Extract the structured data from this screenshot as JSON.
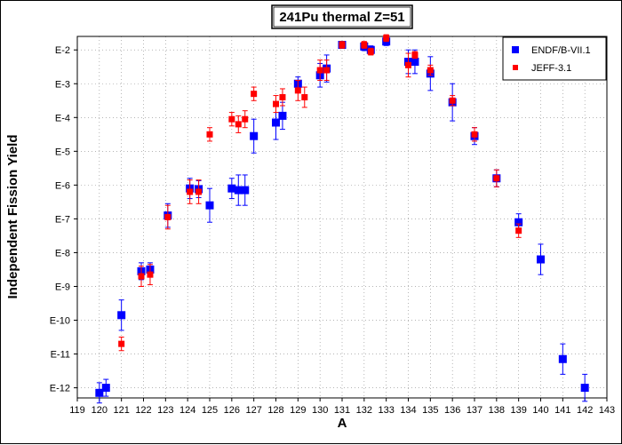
{
  "chart_data": {
    "type": "scatter",
    "title": "241Pu thermal Z=51",
    "xlabel": "A",
    "ylabel": "Independent Fission Yield",
    "xlim": [
      119,
      143
    ],
    "ylim_exp": [
      -12.3,
      -1.6
    ],
    "y_scale": "log",
    "grid": true,
    "legend_position": "top-right",
    "x_ticks": [
      "119",
      "120",
      "121",
      "122",
      "123",
      "124",
      "125",
      "126",
      "127",
      "128",
      "129",
      "130",
      "131",
      "132",
      "133",
      "134",
      "135",
      "136",
      "137",
      "138",
      "139",
      "140",
      "141",
      "142",
      "143"
    ],
    "y_ticks": [
      "E-2",
      "E-3",
      "E-4",
      "E-5",
      "E-6",
      "E-7",
      "E-8",
      "E-9",
      "E-10",
      "E-11",
      "E-12"
    ],
    "series": [
      {
        "name": "ENDF/B-VII.1",
        "color": "#0000ff",
        "marker": "square",
        "points": [
          {
            "x": 120.0,
            "y": -12.15,
            "err": 0.3
          },
          {
            "x": 120.3,
            "y": -12.0,
            "err": 0.25
          },
          {
            "x": 121.0,
            "y": -9.85,
            "err": 0.45
          },
          {
            "x": 121.9,
            "y": -8.55,
            "err": 0.25
          },
          {
            "x": 122.3,
            "y": -8.5,
            "err": 0.2
          },
          {
            "x": 123.1,
            "y": -6.9,
            "err": 0.35
          },
          {
            "x": 124.1,
            "y": -6.1,
            "err": 0.3
          },
          {
            "x": 124.5,
            "y": -6.12,
            "err": 0.25
          },
          {
            "x": 125.0,
            "y": -6.6,
            "err": 0.5
          },
          {
            "x": 126.0,
            "y": -6.1,
            "err": 0.3
          },
          {
            "x": 126.3,
            "y": -6.15,
            "err": 0.45
          },
          {
            "x": 126.6,
            "y": -6.15,
            "err": 0.45
          },
          {
            "x": 127.0,
            "y": -4.55,
            "err": 0.5
          },
          {
            "x": 128.0,
            "y": -4.15,
            "err": 0.5
          },
          {
            "x": 128.3,
            "y": -3.95,
            "err": 0.4
          },
          {
            "x": 129.0,
            "y": -3.0,
            "err": 0.2
          },
          {
            "x": 130.0,
            "y": -2.75,
            "err": 0.35
          },
          {
            "x": 130.3,
            "y": -2.55,
            "err": 0.4
          },
          {
            "x": 131.0,
            "y": -1.85,
            "err": 0.1
          },
          {
            "x": 132.0,
            "y": -1.9,
            "err": 0.12
          },
          {
            "x": 132.3,
            "y": -2.0,
            "err": 0.12
          },
          {
            "x": 133.0,
            "y": -1.75,
            "err": 0.12
          },
          {
            "x": 134.0,
            "y": -2.35,
            "err": 0.35
          },
          {
            "x": 134.3,
            "y": -2.35,
            "err": 0.35
          },
          {
            "x": 135.0,
            "y": -2.7,
            "err": 0.5
          },
          {
            "x": 136.0,
            "y": -3.55,
            "err": 0.55
          },
          {
            "x": 137.0,
            "y": -4.55,
            "err": 0.25
          },
          {
            "x": 138.0,
            "y": -5.8,
            "err": 0.25
          },
          {
            "x": 139.0,
            "y": -7.1,
            "err": 0.25
          },
          {
            "x": 140.0,
            "y": -8.2,
            "err": 0.45
          },
          {
            "x": 141.0,
            "y": -11.15,
            "err": 0.45
          },
          {
            "x": 142.0,
            "y": -12.0,
            "err": 0.4
          }
        ]
      },
      {
        "name": "JEFF-3.1",
        "color": "#ff0000",
        "marker": "square",
        "points": [
          {
            "x": 121.0,
            "y": -10.7,
            "err": 0.2
          },
          {
            "x": 121.9,
            "y": -8.7,
            "err": 0.3
          },
          {
            "x": 122.3,
            "y": -8.65,
            "err": 0.3
          },
          {
            "x": 123.1,
            "y": -6.95,
            "err": 0.35
          },
          {
            "x": 124.1,
            "y": -6.2,
            "err": 0.35
          },
          {
            "x": 124.5,
            "y": -6.2,
            "err": 0.35
          },
          {
            "x": 125.0,
            "y": -4.5,
            "err": 0.2
          },
          {
            "x": 126.0,
            "y": -4.05,
            "err": 0.2
          },
          {
            "x": 126.3,
            "y": -4.2,
            "err": 0.25
          },
          {
            "x": 126.6,
            "y": -4.05,
            "err": 0.25
          },
          {
            "x": 127.0,
            "y": -3.3,
            "err": 0.2
          },
          {
            "x": 128.0,
            "y": -3.6,
            "err": 0.25
          },
          {
            "x": 128.3,
            "y": -3.4,
            "err": 0.25
          },
          {
            "x": 129.0,
            "y": -3.2,
            "err": 0.3
          },
          {
            "x": 129.3,
            "y": -3.4,
            "err": 0.3
          },
          {
            "x": 130.0,
            "y": -2.6,
            "err": 0.3
          },
          {
            "x": 130.3,
            "y": -2.6,
            "err": 0.3
          },
          {
            "x": 131.0,
            "y": -1.85,
            "err": 0.1
          },
          {
            "x": 132.0,
            "y": -1.85,
            "err": 0.1
          },
          {
            "x": 132.3,
            "y": -2.05,
            "err": 0.1
          },
          {
            "x": 133.0,
            "y": -1.65,
            "err": 0.1
          },
          {
            "x": 134.0,
            "y": -2.45,
            "err": 0.35
          },
          {
            "x": 134.3,
            "y": -2.15,
            "err": 0.1
          },
          {
            "x": 135.0,
            "y": -2.6,
            "err": 0.15
          },
          {
            "x": 136.0,
            "y": -3.5,
            "err": 0.15
          },
          {
            "x": 137.0,
            "y": -4.5,
            "err": 0.2
          },
          {
            "x": 138.0,
            "y": -5.8,
            "err": 0.25
          },
          {
            "x": 139.0,
            "y": -7.35,
            "err": 0.2
          }
        ]
      }
    ]
  }
}
